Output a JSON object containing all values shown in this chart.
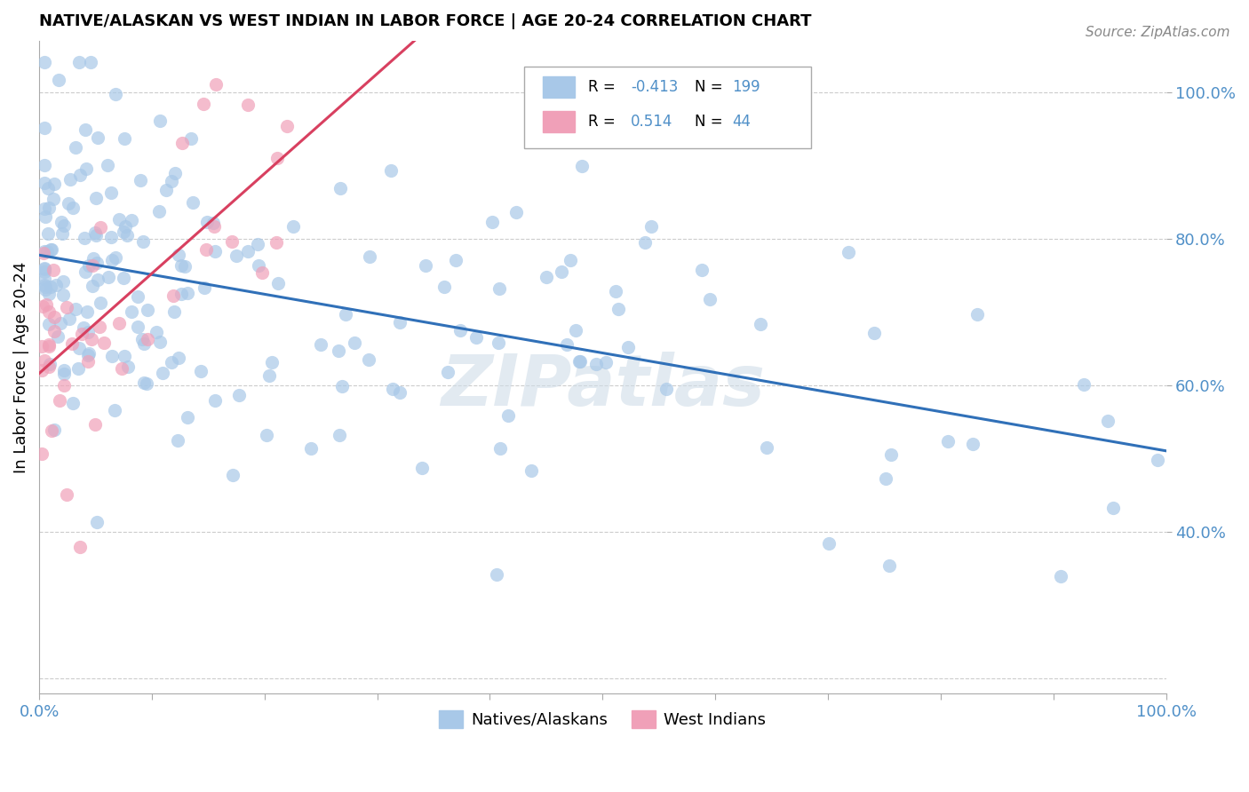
{
  "title": "NATIVE/ALASKAN VS WEST INDIAN IN LABOR FORCE | AGE 20-24 CORRELATION CHART",
  "source": "Source: ZipAtlas.com",
  "ylabel": "In Labor Force | Age 20-24",
  "right_yticks": [
    1.0,
    0.8,
    0.6,
    0.4
  ],
  "right_yticklabels": [
    "100.0%",
    "80.0%",
    "60.0%",
    "40.0%"
  ],
  "blue_color": "#a8c8e8",
  "pink_color": "#f0a0b8",
  "blue_line_color": "#3070b8",
  "pink_line_color": "#d84060",
  "watermark": "ZIPatlas",
  "background_color": "#ffffff",
  "grid_color": "#cccccc",
  "tick_color": "#5090c8",
  "R_blue": -0.413,
  "N_blue": 199,
  "R_pink": 0.514,
  "N_pink": 44,
  "blue_seed": 17,
  "pink_seed": 23,
  "xlim": [
    0.0,
    1.0
  ],
  "ylim": [
    0.18,
    1.07
  ]
}
